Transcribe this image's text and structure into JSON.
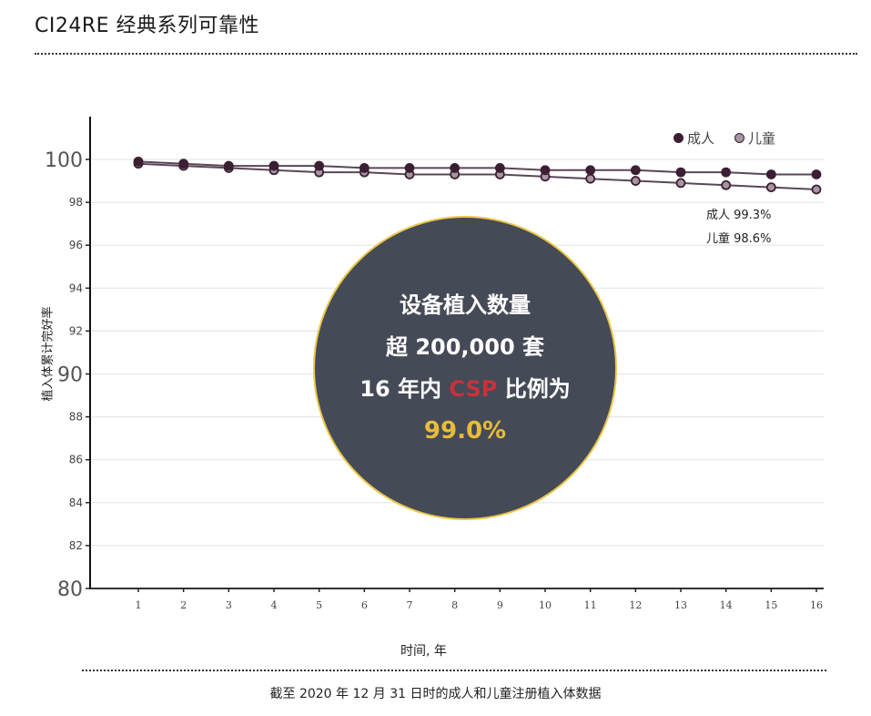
{
  "title": "CI24RE 经典系列可靠性",
  "caption": "截至 2020 年 12 月 31 日时的成人和儿童注册植入体数据",
  "chart_data": {
    "type": "line",
    "title": "CI24RE 经典系列可靠性",
    "xlabel": "时间, 年",
    "ylabel": "植入体累计完好率",
    "x": [
      1,
      2,
      3,
      4,
      5,
      6,
      7,
      8,
      9,
      10,
      11,
      12,
      13,
      14,
      15,
      16
    ],
    "ylim": [
      80,
      100
    ],
    "yticks": [
      80,
      82,
      84,
      86,
      88,
      90,
      92,
      94,
      96,
      98,
      100
    ],
    "grid": true,
    "legend_position": "top-right",
    "series": [
      {
        "name": "成人",
        "color": "#3b1f33",
        "values": [
          99.9,
          99.8,
          99.7,
          99.7,
          99.7,
          99.6,
          99.6,
          99.6,
          99.6,
          99.5,
          99.5,
          99.5,
          99.4,
          99.4,
          99.3,
          99.3
        ]
      },
      {
        "name": "儿童",
        "color": "#a895a3",
        "values": [
          99.8,
          99.7,
          99.6,
          99.5,
          99.4,
          99.4,
          99.3,
          99.3,
          99.3,
          99.2,
          99.1,
          99.0,
          98.9,
          98.8,
          98.7,
          98.6
        ]
      }
    ],
    "annotations": [
      "成人 99.3%",
      "儿童 98.6%"
    ]
  },
  "legend": {
    "adult": "成人",
    "child": "儿童"
  },
  "end_labels": {
    "adult": "成人 99.3%",
    "child": "儿童 98.6%"
  },
  "callout": {
    "line1": "设备植入数量",
    "line2": "超 200,000 套",
    "line3_prefix": "16 年内 ",
    "line3_highlight": "CSP",
    "line3_suffix": " 比例为",
    "line4": "99.0%",
    "colors": {
      "background": "#454a57",
      "border": "#e9c74a",
      "highlight": "#c8323a",
      "percent": "#e8bc3a"
    }
  }
}
